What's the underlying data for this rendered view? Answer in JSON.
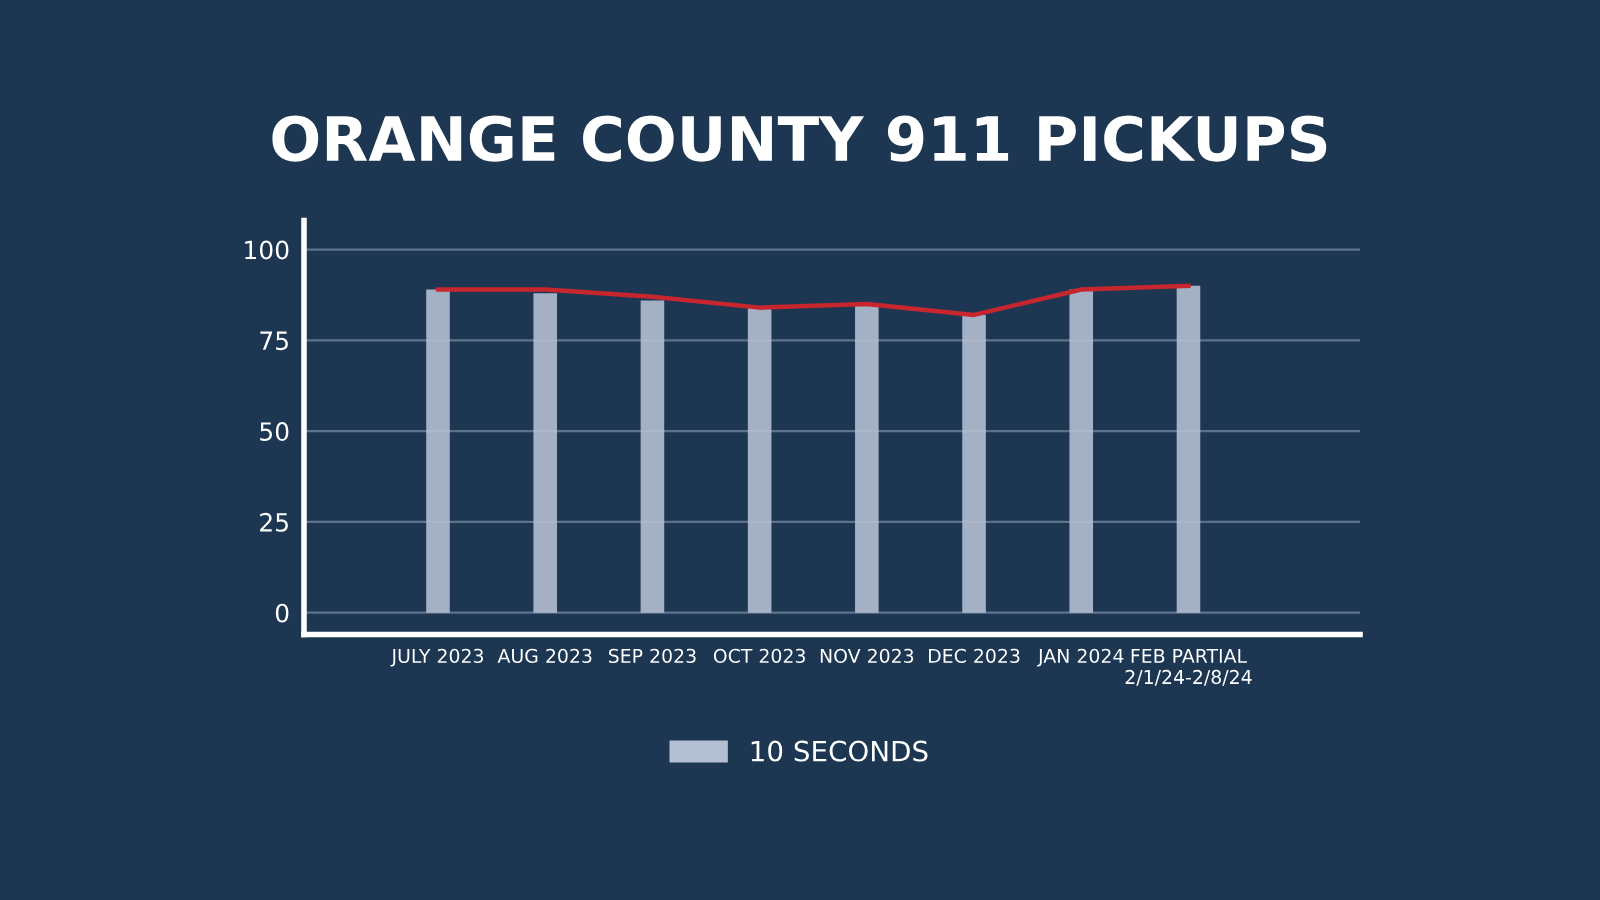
{
  "chart_data": {
    "type": "bar",
    "title": "ORANGE COUNTY 911 PICKUPS",
    "categories": [
      "JULY 2023",
      "AUG 2023",
      "SEP 2023",
      "OCT 2023",
      "NOV 2023",
      "DEC 2023",
      "JAN 2024",
      "FEB PARTIAL\n2/1/24-2/8/24"
    ],
    "series": [
      {
        "name": "10 SECONDS",
        "color": "#b4bfd2",
        "values": [
          89,
          88,
          86,
          84,
          85,
          82,
          89,
          90
        ]
      },
      {
        "type": "line",
        "color": "#c8262e",
        "values": [
          89,
          89,
          87,
          84,
          85,
          82,
          89,
          90
        ]
      }
    ],
    "ylim": [
      -6,
      108
    ],
    "yticks": [
      0,
      25,
      50,
      75,
      100
    ],
    "grid": "y",
    "legend": "bottom",
    "marker": "none",
    "line_style": "solid"
  }
}
